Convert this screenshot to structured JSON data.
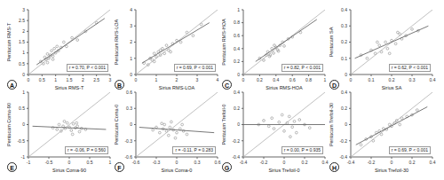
{
  "chart_data": [
    {
      "type": "scatter",
      "title": "A",
      "xlabel": "Sirius RMS-T",
      "ylabel": "Pentacam RMS-T",
      "annotation": "r = 0.70, P < 0.001",
      "xlim": [
        0,
        3
      ],
      "ylim": [
        0,
        3
      ],
      "xticks": [
        0,
        0.5,
        1,
        1.5,
        2,
        2.5,
        3
      ],
      "yticks": [
        0,
        0.5,
        1,
        1.5,
        2,
        2.5,
        3
      ],
      "series": [
        {
          "type": "scatter",
          "color": "#8c8c8c",
          "marker": "circle",
          "x": [
            0.45,
            0.55,
            0.6,
            0.65,
            0.7,
            0.75,
            0.8,
            0.85,
            0.9,
            0.95,
            1.0,
            1.05,
            1.1,
            1.2,
            1.3,
            1.4,
            1.6,
            1.8,
            2.1,
            2.5,
            0.7,
            0.9
          ],
          "values": [
            0.6,
            0.5,
            0.8,
            0.7,
            0.95,
            0.75,
            0.9,
            1.1,
            0.85,
            1.2,
            1.0,
            1.3,
            1.1,
            1.25,
            1.5,
            1.3,
            1.7,
            1.6,
            2.0,
            2.4,
            0.55,
            0.7
          ]
        },
        {
          "type": "line",
          "color": "#b0b0b0",
          "x": [
            0,
            3
          ],
          "values": [
            0,
            3
          ]
        },
        {
          "type": "line",
          "color": "#555555",
          "x": [
            0.3,
            2.8
          ],
          "values": [
            0.45,
            2.6
          ]
        }
      ]
    },
    {
      "type": "scatter",
      "title": "B",
      "xlabel": "Sirius RMS-LOA",
      "ylabel": "Pentacam RMS-LOA",
      "annotation": "r = 0.69, P < 0.001",
      "xlim": [
        0,
        4
      ],
      "ylim": [
        0,
        4
      ],
      "xticks": [
        0,
        1,
        2,
        3,
        4
      ],
      "yticks": [
        0,
        1,
        2,
        3,
        4
      ],
      "series": [
        {
          "type": "scatter",
          "color": "#8c8c8c",
          "marker": "circle",
          "x": [
            0.4,
            0.6,
            0.7,
            0.8,
            0.9,
            1.0,
            1.1,
            1.2,
            1.3,
            1.4,
            1.5,
            1.6,
            1.8,
            2.0,
            2.2,
            2.5,
            2.8,
            3.2,
            0.9,
            1.2,
            1.7
          ],
          "values": [
            0.7,
            0.6,
            1.0,
            0.9,
            1.3,
            1.1,
            1.4,
            1.2,
            1.6,
            1.3,
            1.8,
            1.5,
            1.9,
            2.1,
            2.0,
            2.6,
            2.4,
            3.1,
            0.8,
            1.5,
            1.4
          ]
        },
        {
          "type": "line",
          "color": "#b0b0b0",
          "x": [
            0,
            4
          ],
          "values": [
            0,
            4
          ]
        },
        {
          "type": "line",
          "color": "#555555",
          "x": [
            0.3,
            3.6
          ],
          "values": [
            0.7,
            3.2
          ]
        }
      ]
    },
    {
      "type": "scatter",
      "title": "C",
      "xlabel": "Sirius RMS-HOA",
      "ylabel": "Pentacam RMS-HOA",
      "annotation": "r = 0.82, P < 0.001",
      "xlim": [
        0,
        1
      ],
      "ylim": [
        0,
        1
      ],
      "xticks": [
        0,
        0.2,
        0.4,
        0.6,
        0.8,
        1
      ],
      "yticks": [
        0,
        0.2,
        0.4,
        0.6,
        0.8,
        1
      ],
      "series": [
        {
          "type": "scatter",
          "color": "#8c8c8c",
          "marker": "circle",
          "x": [
            0.2,
            0.25,
            0.28,
            0.3,
            0.32,
            0.35,
            0.37,
            0.4,
            0.42,
            0.45,
            0.48,
            0.5,
            0.55,
            0.6,
            0.7,
            0.33,
            0.38,
            0.43
          ],
          "values": [
            0.25,
            0.22,
            0.3,
            0.35,
            0.28,
            0.4,
            0.33,
            0.42,
            0.38,
            0.45,
            0.5,
            0.44,
            0.55,
            0.58,
            0.65,
            0.3,
            0.45,
            0.36
          ]
        },
        {
          "type": "line",
          "color": "#b0b0b0",
          "x": [
            0,
            1
          ],
          "values": [
            0,
            1
          ]
        },
        {
          "type": "line",
          "color": "#555555",
          "x": [
            0.15,
            0.9
          ],
          "values": [
            0.2,
            0.85
          ]
        }
      ]
    },
    {
      "type": "scatter",
      "title": "D",
      "xlabel": "Sirius SA",
      "ylabel": "Pentacam SA",
      "annotation": "r = 0.62, P < 0.001",
      "xlim": [
        0,
        0.4
      ],
      "ylim": [
        0,
        0.4
      ],
      "xticks": [
        0,
        0.1,
        0.2,
        0.3,
        0.4
      ],
      "yticks": [
        0,
        0.1,
        0.2,
        0.3,
        0.4
      ],
      "series": [
        {
          "type": "scatter",
          "color": "#8c8c8c",
          "marker": "circle",
          "x": [
            0.05,
            0.08,
            0.1,
            0.12,
            0.14,
            0.15,
            0.17,
            0.18,
            0.2,
            0.22,
            0.24,
            0.25,
            0.27,
            0.3,
            0.33,
            0.13,
            0.19,
            0.23
          ],
          "values": [
            0.12,
            0.1,
            0.15,
            0.13,
            0.18,
            0.14,
            0.2,
            0.16,
            0.21,
            0.19,
            0.25,
            0.22,
            0.24,
            0.28,
            0.27,
            0.2,
            0.13,
            0.26
          ]
        },
        {
          "type": "line",
          "color": "#b0b0b0",
          "x": [
            0,
            0.4
          ],
          "values": [
            0,
            0.4
          ]
        },
        {
          "type": "line",
          "color": "#555555",
          "x": [
            0.02,
            0.38
          ],
          "values": [
            0.1,
            0.3
          ]
        }
      ]
    },
    {
      "type": "scatter",
      "title": "E",
      "xlabel": "Sirius Coma-90",
      "ylabel": "Pentacam Coma-90",
      "annotation": "r = -0.06, P = 0.560",
      "xlim": [
        -1,
        1
      ],
      "ylim": [
        -1,
        1
      ],
      "xticks": [
        -1,
        -0.5,
        0,
        0.5,
        1
      ],
      "yticks": [
        -1,
        -0.5,
        0,
        0.5,
        1
      ],
      "series": [
        {
          "type": "scatter",
          "color": "#8c8c8c",
          "marker": "circle",
          "x": [
            -0.4,
            -0.3,
            -0.25,
            -0.2,
            -0.15,
            -0.1,
            -0.05,
            0,
            0.05,
            0.1,
            0.15,
            0.2,
            0.25,
            0.3,
            0.4,
            -0.12,
            0.08,
            0.18
          ],
          "values": [
            -0.1,
            -0.15,
            0.0,
            -0.2,
            -0.05,
            -0.12,
            0.05,
            -0.08,
            -0.18,
            0.02,
            -0.1,
            -0.05,
            -0.22,
            -0.12,
            -0.15,
            0.1,
            -0.3,
            0.05
          ]
        },
        {
          "type": "line",
          "color": "#b0b0b0",
          "x": [
            -1,
            1
          ],
          "values": [
            -1,
            1
          ]
        },
        {
          "type": "line",
          "color": "#555555",
          "x": [
            -0.9,
            0.9
          ],
          "values": [
            -0.05,
            -0.15
          ]
        }
      ]
    },
    {
      "type": "scatter",
      "title": "F",
      "xlabel": "Sirius Coma-0",
      "ylabel": "Pentacam Coma-0",
      "annotation": "r = -0.11, P = 0.283",
      "xlim": [
        -0.6,
        0.6
      ],
      "ylim": [
        -0.6,
        0.6
      ],
      "xticks": [
        -0.6,
        -0.3,
        0,
        0.3,
        0.6
      ],
      "yticks": [
        -0.6,
        -0.3,
        0,
        0.3,
        0.6
      ],
      "series": [
        {
          "type": "scatter",
          "color": "#8c8c8c",
          "marker": "circle",
          "x": [
            -0.35,
            -0.3,
            -0.25,
            -0.2,
            -0.18,
            -0.15,
            -0.12,
            -0.1,
            -0.08,
            -0.05,
            0,
            0.05,
            0.1,
            0.15,
            -0.22,
            -0.02,
            0.08
          ],
          "values": [
            -0.1,
            -0.05,
            -0.15,
            -0.08,
            0.0,
            -0.12,
            -0.2,
            -0.05,
            0.05,
            -0.1,
            -0.15,
            -0.08,
            -0.12,
            -0.18,
            0.02,
            -0.25,
            0.0
          ]
        },
        {
          "type": "line",
          "color": "#b0b0b0",
          "x": [
            -0.6,
            0.6
          ],
          "values": [
            -0.6,
            0.6
          ]
        },
        {
          "type": "line",
          "color": "#555555",
          "x": [
            -0.55,
            0.55
          ],
          "values": [
            -0.05,
            -0.15
          ]
        }
      ]
    },
    {
      "type": "scatter",
      "title": "G",
      "xlabel": "Sirius Trefoil-0",
      "ylabel": "Pentacam Trefoil-0",
      "annotation": "r = 0.00, P = 0.935",
      "xlim": [
        -0.4,
        0.4
      ],
      "ylim": [
        -0.4,
        0.4
      ],
      "xticks": [
        -0.4,
        -0.2,
        0,
        0.2,
        0.4
      ],
      "yticks": [
        -0.4,
        -0.2,
        0,
        0.2,
        0.4
      ],
      "series": [
        {
          "type": "scatter",
          "color": "#8c8c8c",
          "marker": "circle",
          "x": [
            -0.25,
            -0.2,
            -0.15,
            -0.12,
            -0.1,
            -0.05,
            0,
            0.03,
            0.05,
            0.08,
            0.1,
            0.12,
            0.15,
            0.2,
            0.25,
            -0.02,
            0.06
          ],
          "values": [
            0.0,
            0.05,
            -0.02,
            0.08,
            -0.05,
            0.03,
            -0.08,
            0.02,
            0.1,
            -0.03,
            0.04,
            -0.1,
            0.06,
            0.0,
            -0.04,
            0.12,
            -0.15
          ]
        },
        {
          "type": "line",
          "color": "#b0b0b0",
          "x": [
            -0.4,
            0.4
          ],
          "values": [
            -0.4,
            0.4
          ]
        },
        {
          "type": "line",
          "color": "#555555",
          "x": [
            -0.4,
            0.4
          ],
          "values": [
            0.0,
            0.0
          ]
        }
      ]
    },
    {
      "type": "scatter",
      "title": "H",
      "xlabel": "Sirius Trefoil-30",
      "ylabel": "Pentacam Trefoil-30",
      "annotation": "r = 0.69, P < 0.001",
      "xlim": [
        -0.4,
        0.4
      ],
      "ylim": [
        -0.4,
        0.4
      ],
      "xticks": [
        -0.4,
        -0.2,
        0,
        0.2,
        0.4
      ],
      "yticks": [
        -0.4,
        -0.2,
        0,
        0.2,
        0.4
      ],
      "series": [
        {
          "type": "scatter",
          "color": "#8c8c8c",
          "marker": "circle",
          "x": [
            -0.3,
            -0.25,
            -0.2,
            -0.18,
            -0.15,
            -0.12,
            -0.1,
            -0.08,
            -0.05,
            -0.02,
            0,
            0.03,
            0.05,
            0.08,
            0.1,
            0.15,
            0.2,
            0.25
          ],
          "values": [
            -0.25,
            -0.18,
            -0.15,
            -0.2,
            -0.1,
            -0.08,
            -0.12,
            -0.05,
            -0.06,
            0.0,
            -0.02,
            0.02,
            0.05,
            0.0,
            0.08,
            0.1,
            0.12,
            0.18
          ]
        },
        {
          "type": "line",
          "color": "#b0b0b0",
          "x": [
            -0.4,
            0.4
          ],
          "values": [
            -0.4,
            0.4
          ]
        },
        {
          "type": "line",
          "color": "#555555",
          "x": [
            -0.35,
            0.35
          ],
          "values": [
            -0.25,
            0.22
          ]
        }
      ]
    }
  ]
}
